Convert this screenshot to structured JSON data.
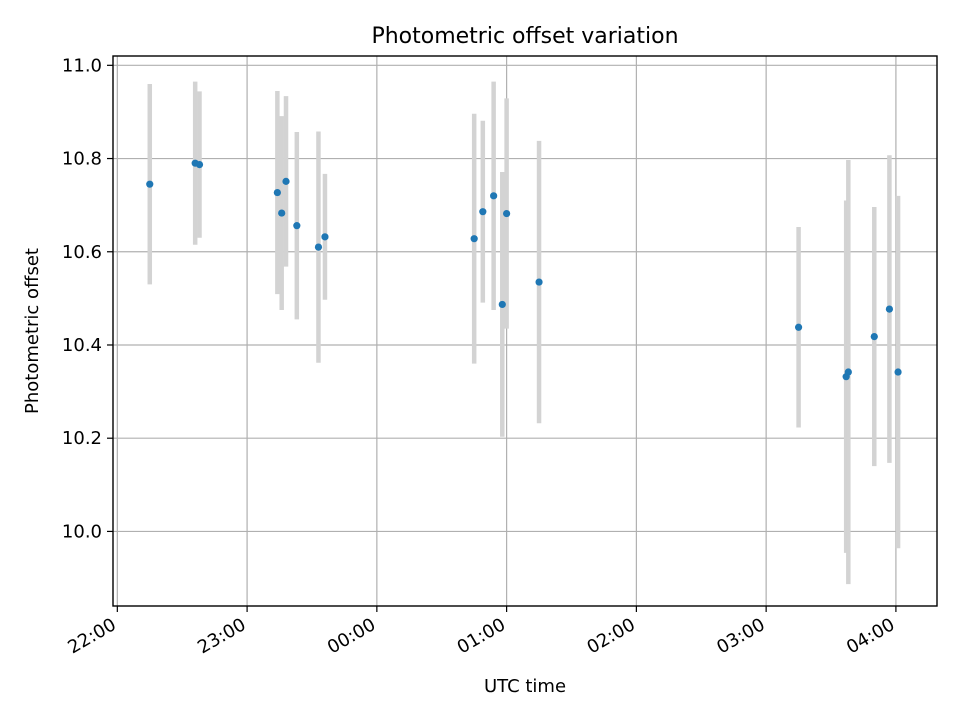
{
  "chart_data": {
    "type": "scatter",
    "title": "Photometric offset variation",
    "xlabel": "UTC time",
    "ylabel": "Photometric offset",
    "x_axis": "time of day (UTC), spanning midnight",
    "xlim": [
      "21:58",
      "04:19"
    ],
    "ylim": [
      9.84,
      11.02
    ],
    "grid": true,
    "x_ticks": [
      "22:00",
      "23:00",
      "00:00",
      "01:00",
      "02:00",
      "03:00",
      "04:00"
    ],
    "y_ticks": [
      "10.0",
      "10.2",
      "10.4",
      "10.6",
      "10.8",
      "11.0"
    ],
    "marker_color": "#1f77b4",
    "errorbar_color": "#d3d3d3",
    "points": [
      {
        "time": "22:15",
        "y": 10.745,
        "err": 0.215
      },
      {
        "time": "22:36",
        "y": 10.79,
        "err": 0.175
      },
      {
        "time": "22:38",
        "y": 10.787,
        "err": 0.157
      },
      {
        "time": "23:14",
        "y": 10.727,
        "err": 0.218
      },
      {
        "time": "23:16",
        "y": 10.683,
        "err": 0.208
      },
      {
        "time": "23:18",
        "y": 10.751,
        "err": 0.183
      },
      {
        "time": "23:23",
        "y": 10.656,
        "err": 0.201
      },
      {
        "time": "23:33",
        "y": 10.61,
        "err": 0.248
      },
      {
        "time": "23:36",
        "y": 10.632,
        "err": 0.135
      },
      {
        "time": "00:45",
        "y": 10.628,
        "err": 0.268
      },
      {
        "time": "00:49",
        "y": 10.686,
        "err": 0.195
      },
      {
        "time": "00:54",
        "y": 10.72,
        "err": 0.245
      },
      {
        "time": "00:58",
        "y": 10.487,
        "err": 0.284
      },
      {
        "time": "01:00",
        "y": 10.682,
        "err": 0.247
      },
      {
        "time": "01:15",
        "y": 10.535,
        "err": 0.303
      },
      {
        "time": "03:15",
        "y": 10.438,
        "err": 0.215
      },
      {
        "time": "03:37",
        "y": 10.332,
        "err": 0.378
      },
      {
        "time": "03:38",
        "y": 10.342,
        "err": 0.455
      },
      {
        "time": "03:50",
        "y": 10.418,
        "err": 0.278
      },
      {
        "time": "03:57",
        "y": 10.477,
        "err": 0.33
      },
      {
        "time": "04:01",
        "y": 10.342,
        "err": 0.378
      }
    ]
  }
}
